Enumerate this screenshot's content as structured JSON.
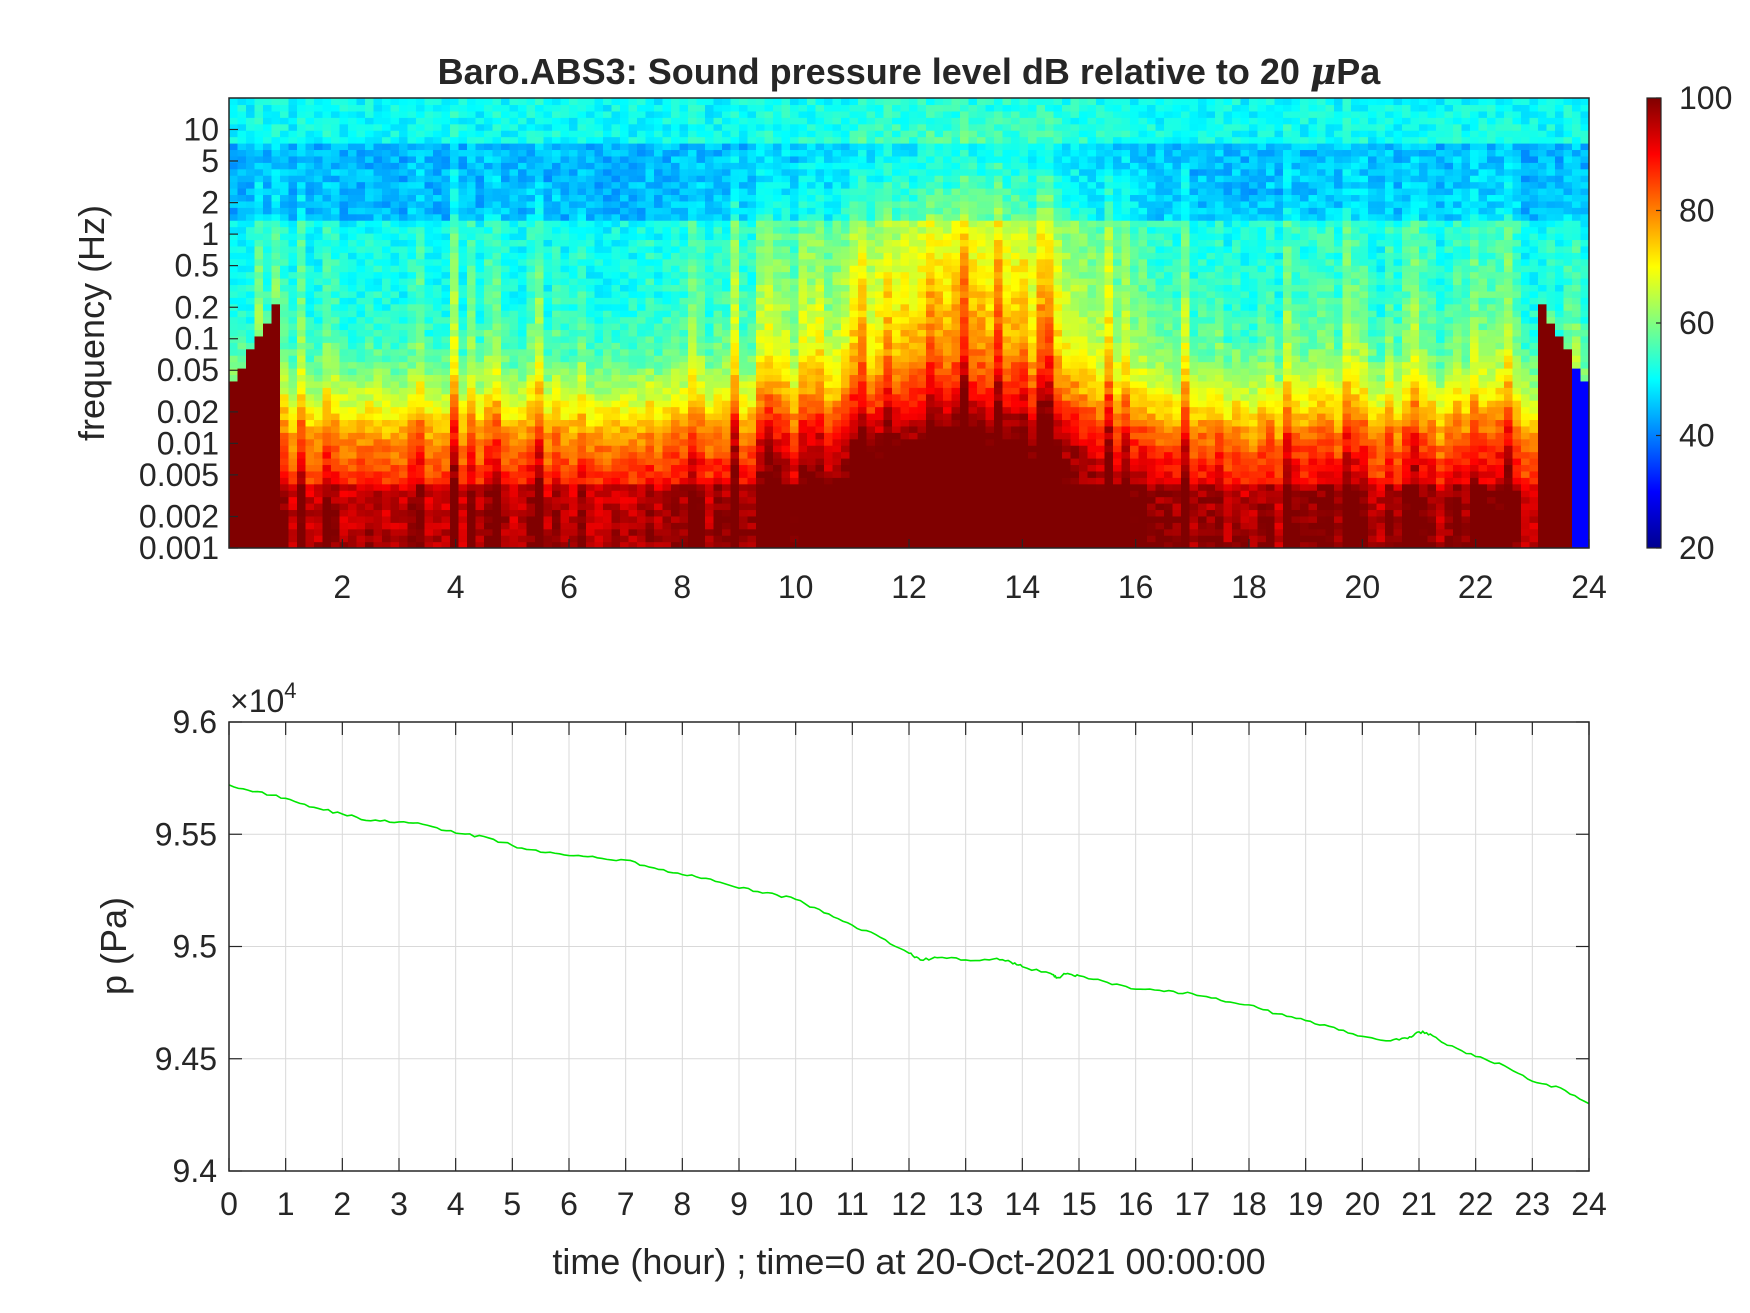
{
  "figure": {
    "background": "#ffffff",
    "axis_color": "#262626",
    "grid_color": "#d9d9d9"
  },
  "chart_data": [
    {
      "type": "heatmap",
      "title": "Baro.ABS3: Sound pressure level dB relative to 20 μPa",
      "title_parts": [
        "Baro.ABS3: Sound pressure level dB relative to 20 ",
        "μ",
        "Pa"
      ],
      "xlabel": "",
      "ylabel": "frequency (Hz)",
      "x_unit": "hour",
      "xlim": [
        0,
        24
      ],
      "x_ticks": [
        2,
        4,
        6,
        8,
        10,
        12,
        14,
        16,
        18,
        20,
        22,
        24
      ],
      "y_scale": "log",
      "ylim": [
        0.001,
        20
      ],
      "y_ticks": [
        0.001,
        0.002,
        0.005,
        0.01,
        0.02,
        0.05,
        0.1,
        0.2,
        0.5,
        1,
        2,
        5,
        10
      ],
      "y_tick_labels": [
        "0.001",
        "0.002",
        "0.005",
        "0.01",
        "0.02",
        "0.05",
        "0.1",
        "0.2",
        "0.5",
        "1",
        "2",
        "5",
        "10"
      ],
      "colorbar": {
        "colormap": "jet",
        "range": [
          20,
          100
        ],
        "ticks": [
          20,
          40,
          60,
          80,
          100
        ],
        "colors": [
          "#00008f",
          "#0000ff",
          "#0080ff",
          "#00ffff",
          "#80ff80",
          "#ffff00",
          "#ff8000",
          "#ff0000",
          "#800000"
        ]
      },
      "description_levels": {
        "high_freq_band_dB": 50,
        "low_freq_band_dB": 90,
        "midday_peak_hour": 13,
        "midday_peak_dB": 95
      },
      "grid": false
    },
    {
      "type": "line",
      "title": "",
      "xlabel": "time (hour) ; time=0 at 20-Oct-2021 00:00:00",
      "ylabel": "p (Pa)",
      "xlim": [
        0,
        24
      ],
      "ylim": [
        94000,
        96000
      ],
      "x_ticks": [
        0,
        1,
        2,
        3,
        4,
        5,
        6,
        7,
        8,
        9,
        10,
        11,
        12,
        13,
        14,
        15,
        16,
        17,
        18,
        19,
        20,
        21,
        22,
        23,
        24
      ],
      "y_ticks": [
        94000,
        94500,
        95000,
        95500,
        96000
      ],
      "y_tick_labels": [
        "9.4",
        "9.45",
        "9.5",
        "9.55",
        "9.6"
      ],
      "exponent_label": "×10",
      "exponent_power": "4",
      "grid": true,
      "series": [
        {
          "color": "#00e600",
          "x": [
            0,
            0.5,
            1,
            1.5,
            2,
            2.5,
            3,
            3.5,
            4,
            4.5,
            5,
            5.5,
            6,
            6.5,
            7,
            7.5,
            8,
            8.5,
            9,
            9.5,
            10,
            10.5,
            11,
            11.5,
            12,
            12.2,
            12.5,
            13,
            13.5,
            13.8,
            14,
            14.5,
            14.6,
            14.8,
            15,
            15.5,
            16,
            16.5,
            17,
            17.5,
            18,
            18.5,
            19,
            19.5,
            20,
            20.5,
            20.8,
            21,
            21.2,
            21.5,
            22,
            22.5,
            23,
            23.5,
            24
          ],
          "y": [
            95720,
            95690,
            95660,
            95620,
            95590,
            95560,
            95555,
            95540,
            95505,
            95490,
            95450,
            95420,
            95405,
            95395,
            95385,
            95350,
            95320,
            95300,
            95260,
            95240,
            95210,
            95150,
            95095,
            95040,
            94970,
            94940,
            94950,
            94940,
            94945,
            94930,
            94910,
            94880,
            94860,
            94880,
            94870,
            94840,
            94810,
            94800,
            94790,
            94760,
            94740,
            94700,
            94670,
            94640,
            94600,
            94580,
            94590,
            94620,
            94610,
            94560,
            94510,
            94470,
            94400,
            94370,
            94300
          ]
        }
      ]
    }
  ]
}
